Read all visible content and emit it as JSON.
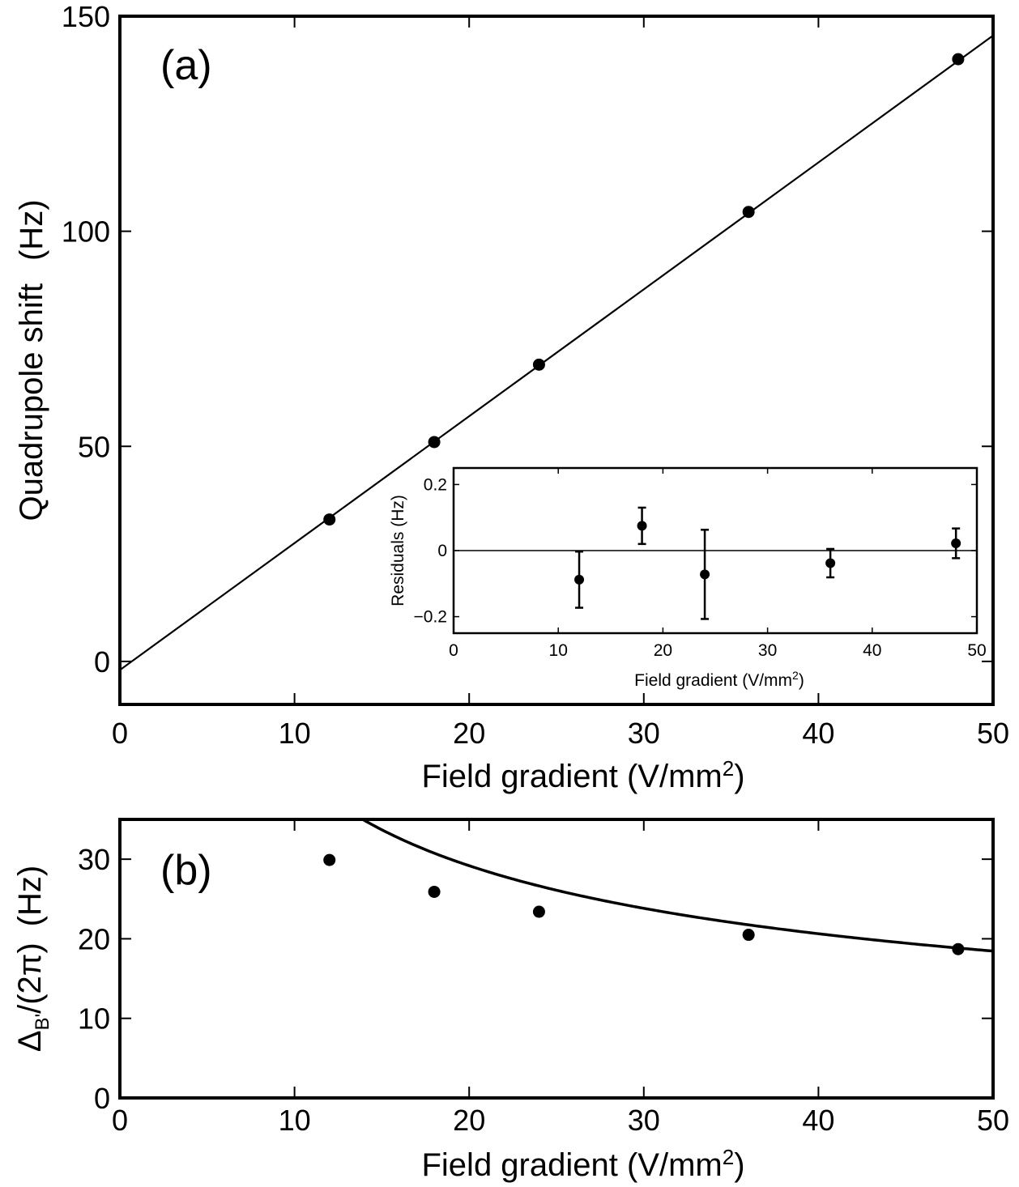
{
  "chart_data": [
    {
      "id": "a",
      "type": "scatter",
      "panel_label": "(a)",
      "xlabel_main": "Field gradient (V/mm",
      "xlabel_sup": "2",
      "xlabel_tail": ")",
      "ylabel_main": "Quadrupole shift",
      "ylabel_unit": "(Hz)",
      "xlim": [
        0,
        50
      ],
      "ylim": [
        -10,
        150
      ],
      "xticks": [
        0,
        10,
        20,
        30,
        40,
        50
      ],
      "xtick_labels": [
        "0",
        "10",
        "20",
        "30",
        "40",
        "50"
      ],
      "yticks": [
        0,
        50,
        100,
        150
      ],
      "ytick_labels": [
        "0",
        "50",
        "100",
        "150"
      ],
      "points": {
        "x": [
          12,
          18,
          24,
          36,
          48
        ],
        "y": [
          33,
          51,
          69,
          104.5,
          140
        ]
      },
      "fit_line": {
        "slope": 2.95,
        "intercept": -2.0
      },
      "inset": {
        "type": "scatter",
        "ylabel": "Residuals (Hz)",
        "xlabel_main": "Field gradient (V/mm",
        "xlabel_sup": "2",
        "xlabel_tail": ")",
        "xlim": [
          0,
          50
        ],
        "ylim": [
          -0.25,
          0.25
        ],
        "xticks": [
          0,
          10,
          20,
          30,
          40,
          50
        ],
        "xtick_labels": [
          "0",
          "10",
          "20",
          "30",
          "40",
          "50"
        ],
        "yticks": [
          -0.2,
          0,
          0.2
        ],
        "ytick_labels": [
          "−0.2",
          "0",
          "0.2"
        ],
        "points": {
          "x": [
            12,
            18,
            24,
            36,
            48
          ],
          "y": [
            -0.088,
            0.075,
            -0.072,
            -0.038,
            0.022
          ],
          "err": [
            0.085,
            0.055,
            0.135,
            0.043,
            0.045
          ]
        }
      }
    },
    {
      "id": "b",
      "type": "scatter",
      "panel_label": "(b)",
      "xlabel_main": "Field gradient (V/mm",
      "xlabel_sup": "2",
      "xlabel_tail": ")",
      "ylabel_delta": "Δ",
      "ylabel_sub": "B'",
      "ylabel_rest": "/(2π)",
      "ylabel_unit": "(Hz)",
      "xlim": [
        0,
        50
      ],
      "ylim": [
        0,
        35
      ],
      "xticks": [
        0,
        10,
        20,
        30,
        40,
        50
      ],
      "xtick_labels": [
        "0",
        "10",
        "20",
        "30",
        "40",
        "50"
      ],
      "yticks": [
        0,
        10,
        20,
        30
      ],
      "ytick_labels": [
        "0",
        "10",
        "20",
        "30"
      ],
      "points": {
        "x": [
          12,
          18,
          24,
          36,
          48
        ],
        "y": [
          29.9,
          25.9,
          23.4,
          20.5,
          18.7
        ]
      },
      "fit_curve": {
        "form": "a/sqrt(x)",
        "a": 130.5
      }
    }
  ]
}
